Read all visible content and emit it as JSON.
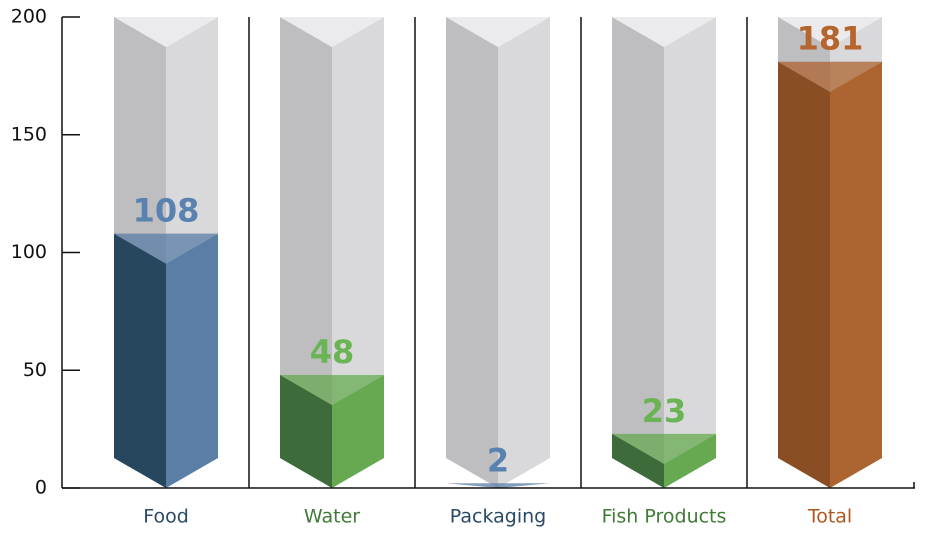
{
  "chart_data": {
    "type": "bar",
    "categories": [
      "Food",
      "Water",
      "Packaging",
      "Fish Products",
      "Total"
    ],
    "values": [
      108,
      48,
      2,
      23,
      181
    ],
    "value_labels": [
      "108",
      "48",
      "2",
      "23",
      "181"
    ],
    "ylim": [
      0,
      200
    ],
    "yticks": [
      0,
      50,
      100,
      150,
      200
    ],
    "ytick_labels": [
      "0",
      "50",
      "100",
      "150",
      "200"
    ],
    "grid": false,
    "title": "",
    "xlabel": "",
    "ylabel": "",
    "colors": {
      "tube_light": "#d9d9db",
      "tube_dark": "#bebdc0",
      "tube_top": "#ebebed",
      "axis": "#111111",
      "bars": [
        {
          "light": "#5a7ea6",
          "dark": "#27475f",
          "label": "#5a82b0",
          "cat_label": "#294a66"
        },
        {
          "light": "#67a951",
          "dark": "#3e6b3a",
          "label": "#6ab454",
          "cat_label": "#3f7a36"
        },
        {
          "light": "#5a7ea6",
          "dark": "#27475f",
          "label": "#5a82b0",
          "cat_label": "#294a66"
        },
        {
          "light": "#67a951",
          "dark": "#3e6b3a",
          "label": "#6ab454",
          "cat_label": "#3f7a36"
        },
        {
          "light": "#ac6430",
          "dark": "#8a4e24",
          "label": "#b5652d",
          "cat_label": "#b1561f"
        }
      ]
    }
  }
}
